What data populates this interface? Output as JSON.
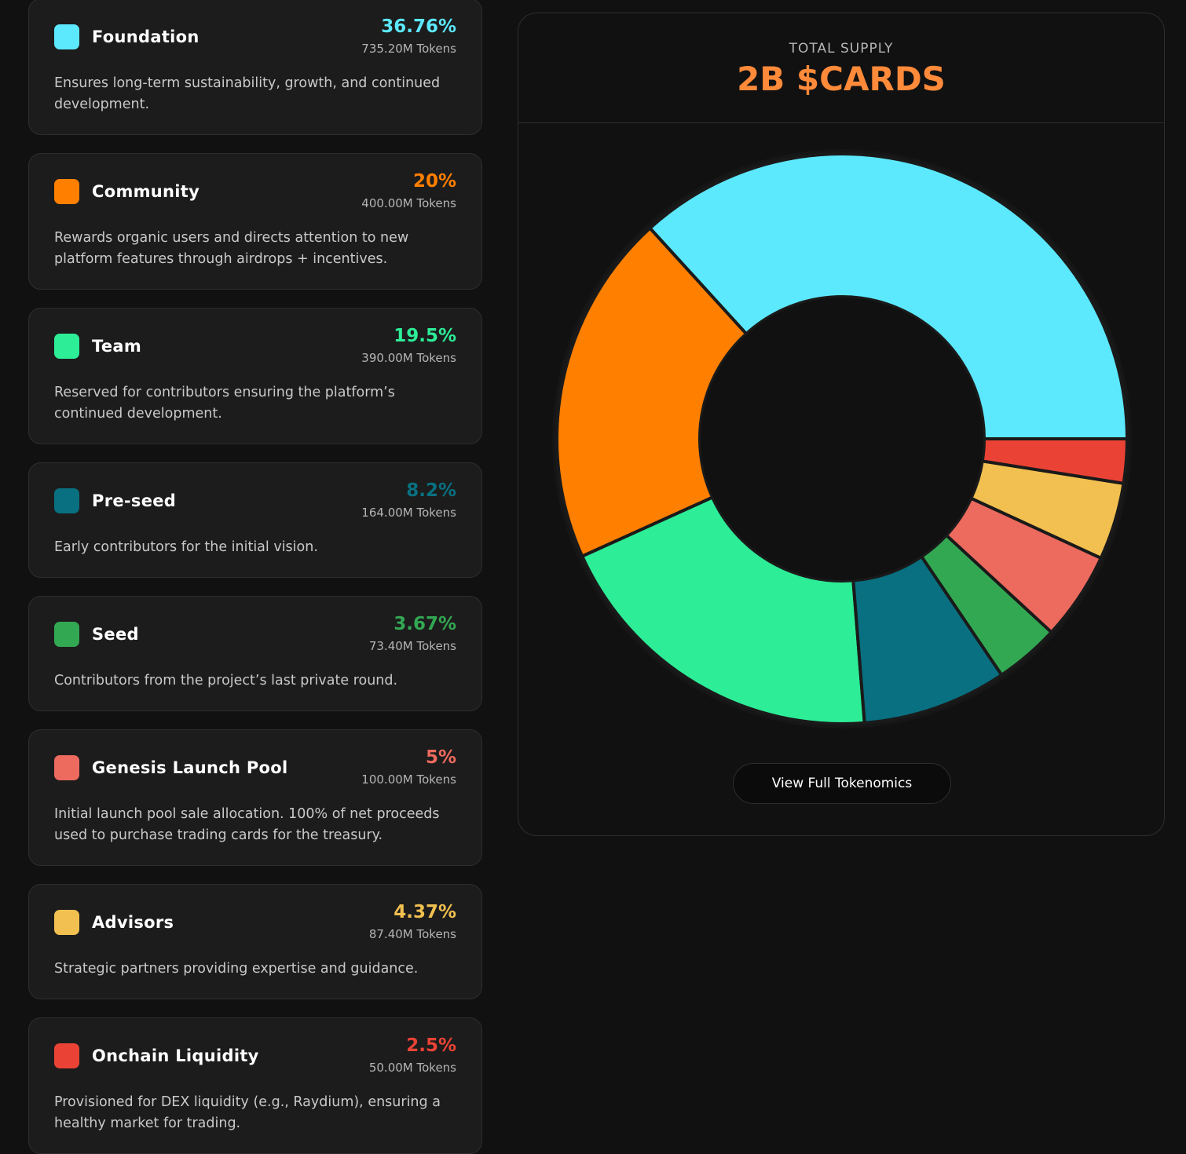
{
  "chart_data": {
    "type": "donut",
    "title": "TOTAL SUPPLY",
    "subtitle": "2B $CARDS",
    "categories": [
      "Foundation",
      "Community",
      "Team",
      "Pre-seed",
      "Seed",
      "Genesis Launch Pool",
      "Advisors",
      "Onchain Liquidity"
    ],
    "values": [
      36.76,
      20,
      19.5,
      8.2,
      3.67,
      5,
      4.37,
      2.5
    ],
    "value_labels": [
      "36.76%",
      "20%",
      "19.5%",
      "8.2%",
      "3.67%",
      "5%",
      "4.37%",
      "2.5%"
    ],
    "colors": [
      "#5ce8fd",
      "#ff7f00",
      "#2ded97",
      "#087080",
      "#33a853",
      "#ec6a5e",
      "#f2c050",
      "#ea4335"
    ]
  },
  "allocations": [
    {
      "tokens": "735.20M Tokens",
      "description": "Ensures long-term sustainability, growth, and continued development."
    },
    {
      "tokens": "400.00M Tokens",
      "description": "Rewards organic users and directs attention to new platform features through airdrops + incentives."
    },
    {
      "tokens": "390.00M Tokens",
      "description": "Reserved for contributors ensuring the platform’s continued development."
    },
    {
      "tokens": "164.00M Tokens",
      "description": "Early contributors for the initial vision."
    },
    {
      "tokens": "73.40M Tokens",
      "description": "Contributors from the project’s last private round."
    },
    {
      "tokens": "100.00M Tokens",
      "description": "Initial launch pool sale allocation. 100% of net proceeds used to purchase trading cards for the treasury."
    },
    {
      "tokens": "87.40M Tokens",
      "description": "Strategic partners providing expertise and guidance."
    },
    {
      "tokens": "50.00M Tokens",
      "description": "Provisioned for DEX liquidity (e.g., Raydium), ensuring a healthy market for trading."
    }
  ],
  "button": "View Full Tokenomics"
}
